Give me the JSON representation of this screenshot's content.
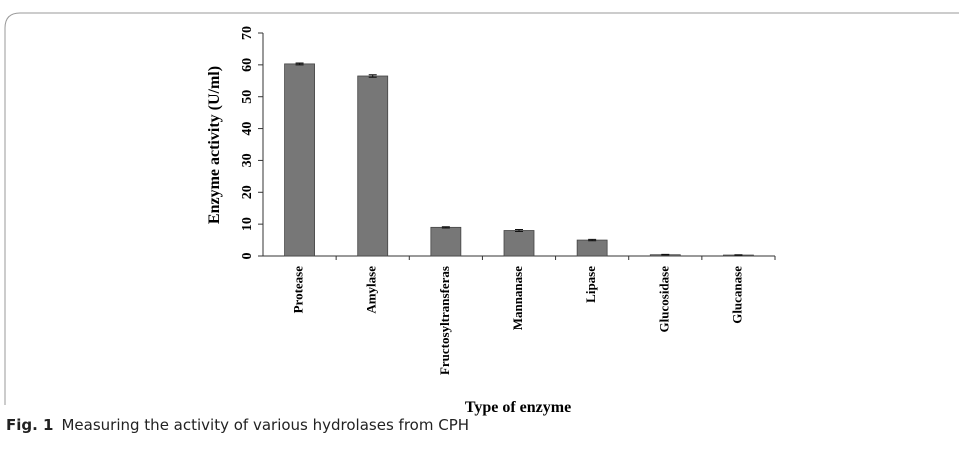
{
  "chart_data": {
    "type": "bar",
    "ylabel": "Enzyme activity (U/ml)",
    "xlabel": "Type of enzyme",
    "categories": [
      "Protease",
      "Amylase",
      "Fructosyltransferas",
      "Mannanase",
      "Lipase",
      "Glucosidase",
      "Glucanase"
    ],
    "values": [
      60.3,
      56.5,
      9,
      8,
      5,
      0.4,
      0.3
    ],
    "errors": [
      0.3,
      0.4,
      0.2,
      0.3,
      0.2,
      0.1,
      0.1
    ],
    "color": "#777777",
    "ylim": [
      0,
      70
    ],
    "yticks": [
      0,
      10,
      20,
      30,
      40,
      50,
      60,
      70
    ],
    "grid": false
  },
  "figure": {
    "label": "Fig. 1",
    "caption": "Measuring the activity of various hydrolases from CPH"
  }
}
